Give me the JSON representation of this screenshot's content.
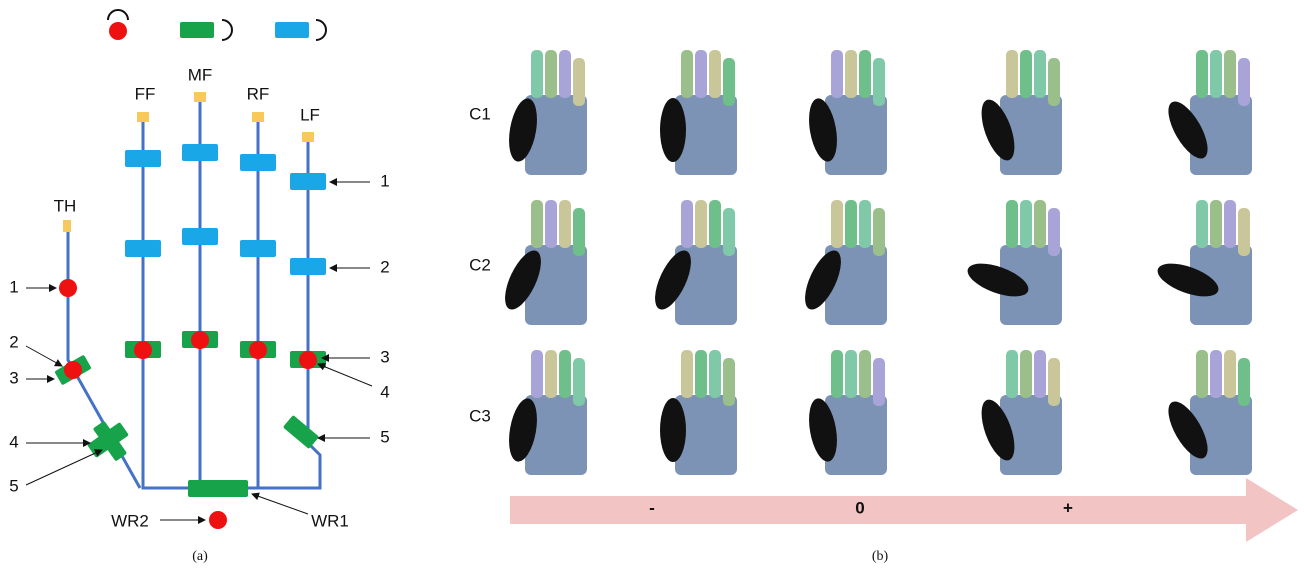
{
  "panel_a": {
    "fingers": [
      "FF",
      "MF",
      "RF",
      "LF"
    ],
    "thumb": "TH",
    "thumb_joint_labels": [
      "1",
      "2",
      "3",
      "4",
      "5"
    ],
    "lf_joint_labels": [
      "1",
      "2",
      "3",
      "4",
      "5"
    ],
    "wrist_labels": [
      "WR2",
      "WR1"
    ],
    "caption": "(a)"
  },
  "panel_b": {
    "rows": [
      "C1",
      "C2",
      "C3"
    ],
    "arrow_labels": [
      "-",
      "0",
      "+"
    ],
    "caption": "(b)"
  }
}
